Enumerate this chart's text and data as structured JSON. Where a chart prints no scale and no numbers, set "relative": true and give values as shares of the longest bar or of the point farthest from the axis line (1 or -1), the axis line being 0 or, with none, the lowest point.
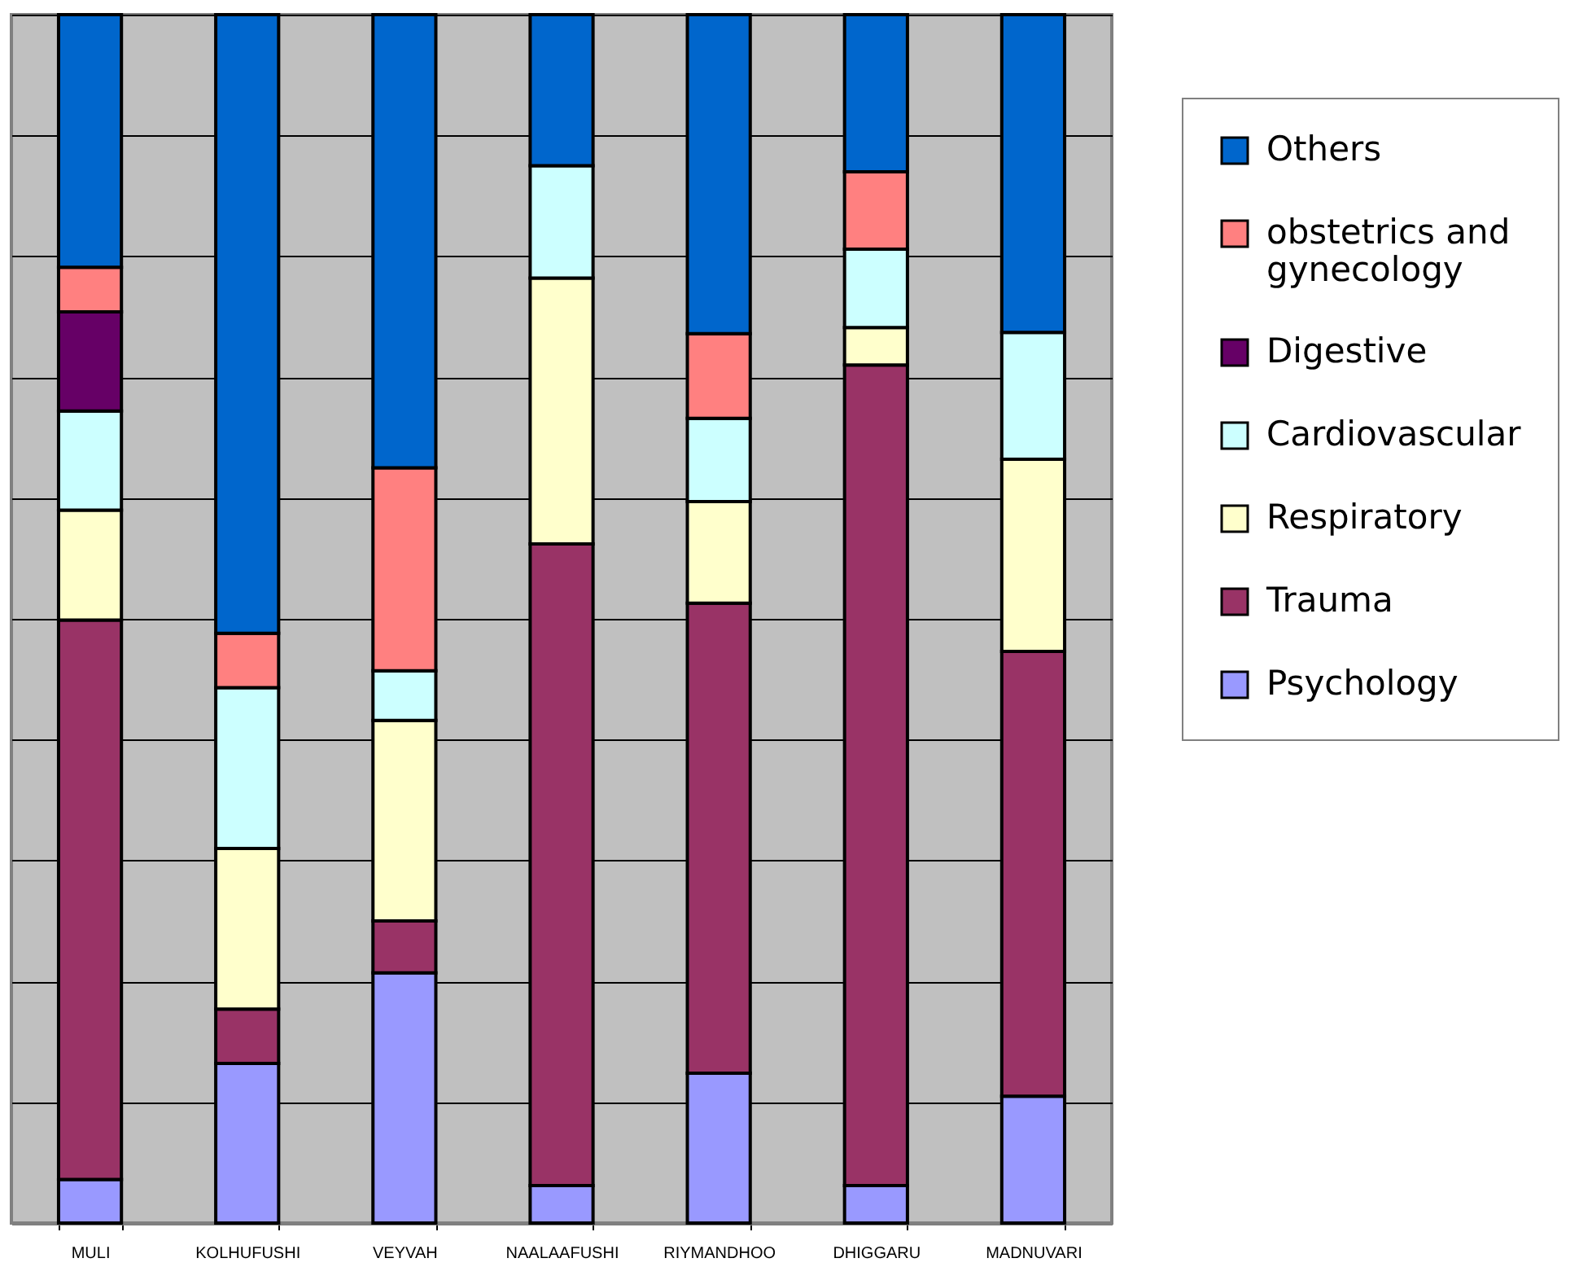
{
  "chart_data": {
    "type": "bar",
    "stacked": true,
    "relative": true,
    "grid": "y",
    "legend": "right",
    "categories": [
      "MULI",
      "KOLHUFUSHI",
      "VEYVAH",
      "NAALAAFUSHI",
      "RIYMANDHOO",
      "DHIGGARU",
      "MADNUVARI"
    ],
    "series": [
      {
        "name": "Psychology",
        "color": "#9999ff",
        "values": [
          0.036,
          0.132,
          0.207,
          0.031,
          0.124,
          0.031,
          0.105
        ]
      },
      {
        "name": "Trauma",
        "color": "#993366",
        "values": [
          0.463,
          0.045,
          0.043,
          0.531,
          0.389,
          0.679,
          0.368
        ]
      },
      {
        "name": "Respiratory",
        "color": "#ffffcc",
        "values": [
          0.091,
          0.133,
          0.166,
          0.22,
          0.084,
          0.031,
          0.159
        ]
      },
      {
        "name": "Cardiovascular",
        "color": "#ccffff",
        "values": [
          0.082,
          0.133,
          0.041,
          0.093,
          0.069,
          0.065,
          0.105
        ]
      },
      {
        "name": "Digestive",
        "color": "#660066",
        "values": [
          0.082,
          null,
          null,
          null,
          null,
          null,
          null
        ]
      },
      {
        "name": "obstetrics and gynecology",
        "color": "#ff8080",
        "values": [
          0.037,
          0.045,
          0.168,
          null,
          0.07,
          0.064,
          null
        ]
      },
      {
        "name": "Others",
        "color": "#0066cc",
        "values": [
          0.209,
          0.512,
          0.375,
          0.125,
          0.264,
          0.13,
          0.263
        ]
      }
    ]
  }
}
